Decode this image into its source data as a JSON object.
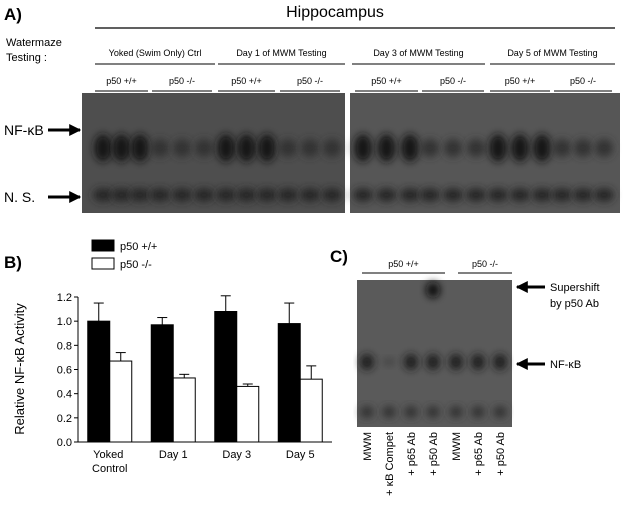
{
  "panel_a": {
    "label": "A)",
    "title": "Hippocampus",
    "row_label": [
      "Watermaze",
      "Testing :"
    ],
    "groups": [
      "Yoked (Swim Only) Ctrl",
      "Day 1 of MWM Testing",
      "Day 3 of MWM Testing",
      "Day 5 of MWM Testing"
    ],
    "genotypes": [
      "p50 +/+",
      "p50 -/-",
      "p50 +/+",
      "p50 -/-",
      "p50 +/+",
      "p50 -/-",
      "p50 +/+",
      "p50 -/-"
    ],
    "band_labels": [
      "NF-κB",
      "N. S."
    ]
  },
  "chart_data": {
    "type": "bar",
    "label": "B)",
    "y_label": "Relative NF-κB Activity",
    "categories": [
      "Yoked Control",
      "Day 1",
      "Day 3",
      "Day 5"
    ],
    "series": [
      {
        "name": "p50 +/+",
        "color": "#000000",
        "values": [
          1.0,
          0.97,
          1.08,
          0.98
        ],
        "errors": [
          0.15,
          0.06,
          0.13,
          0.17
        ]
      },
      {
        "name": "p50 -/-",
        "color": "#ffffff",
        "values": [
          0.67,
          0.53,
          0.46,
          0.52
        ],
        "errors": [
          0.07,
          0.03,
          0.02,
          0.11
        ]
      }
    ],
    "ylim": [
      0,
      1.2
    ],
    "yticks": [
      {
        "value": 0,
        "label": "0.0"
      },
      0.2,
      0.4,
      0.6,
      0.8,
      {
        "value": 1,
        "label": "1.0"
      },
      1.2
    ]
  },
  "panel_c": {
    "label": "C)",
    "genotypes": [
      "p50 +/+",
      "p50 -/-"
    ],
    "lanes": [
      "MWM",
      "+ κB Compet",
      "+ p65 Ab",
      "+ p50 Ab",
      "MWM",
      "+ p65 Ab",
      "+ p50 Ab"
    ],
    "arrow_labels": [
      [
        "Supershift",
        "by p50 Ab"
      ],
      "NF-κB"
    ]
  }
}
